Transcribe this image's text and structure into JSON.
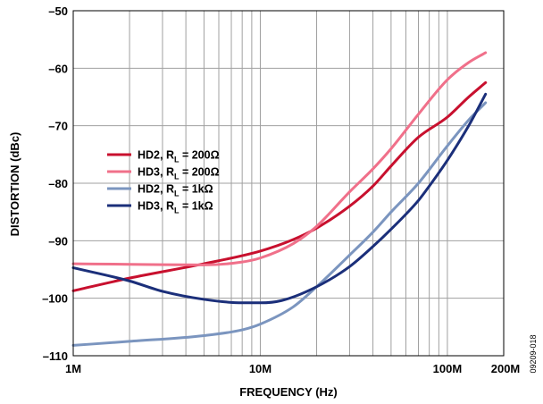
{
  "chart_data": {
    "type": "line",
    "xlabel": "FREQUENCY (Hz)",
    "ylabel": "DISTORTION (dBc)",
    "x_scale": "log",
    "xlim": [
      1000000,
      200000000
    ],
    "ylim": [
      -110,
      -50
    ],
    "grid": true,
    "legend_position": "center-left",
    "figure_id": "09209-018",
    "x_ticks": [
      {
        "value": 1000000,
        "label": "1M"
      },
      {
        "value": 10000000,
        "label": "10M"
      },
      {
        "value": 100000000,
        "label": "100M"
      },
      {
        "value": 200000000,
        "label": "200M"
      }
    ],
    "y_ticks": [
      {
        "value": -50,
        "label": "–50"
      },
      {
        "value": -60,
        "label": "–60"
      },
      {
        "value": -70,
        "label": "–70"
      },
      {
        "value": -80,
        "label": "–80"
      },
      {
        "value": -90,
        "label": "–90"
      },
      {
        "value": -100,
        "label": "–100"
      },
      {
        "value": -110,
        "label": "–110"
      }
    ],
    "series": [
      {
        "name": "HD2, RL = 200Ω",
        "label_main": "HD2, R",
        "label_sub": "L",
        "label_tail": " = 200Ω",
        "color": "#c8102e",
        "points": [
          [
            1000000,
            -98.7
          ],
          [
            2000000,
            -96.5
          ],
          [
            5000000,
            -94.0
          ],
          [
            10000000,
            -91.8
          ],
          [
            15000000,
            -89.8
          ],
          [
            20000000,
            -87.8
          ],
          [
            30000000,
            -84.0
          ],
          [
            40000000,
            -80.5
          ],
          [
            50000000,
            -77.0
          ],
          [
            70000000,
            -72.0
          ],
          [
            100000000,
            -68.5
          ],
          [
            130000000,
            -65.0
          ],
          [
            160000000,
            -62.5
          ]
        ]
      },
      {
        "name": "HD3, RL = 200Ω",
        "label_main": "HD3, R",
        "label_sub": "L",
        "label_tail": " = 200Ω",
        "color": "#f0708a",
        "points": [
          [
            1000000,
            -94.0
          ],
          [
            2000000,
            -94.1
          ],
          [
            5000000,
            -94.2
          ],
          [
            8000000,
            -93.7
          ],
          [
            10000000,
            -93.0
          ],
          [
            15000000,
            -90.5
          ],
          [
            20000000,
            -87.5
          ],
          [
            30000000,
            -81.5
          ],
          [
            40000000,
            -77.5
          ],
          [
            50000000,
            -74.0
          ],
          [
            70000000,
            -68.0
          ],
          [
            100000000,
            -62.0
          ],
          [
            130000000,
            -59.0
          ],
          [
            160000000,
            -57.3
          ]
        ]
      },
      {
        "name": "HD2, RL = 1kΩ",
        "label_main": "HD2, R",
        "label_sub": "L",
        "label_tail": " = 1kΩ",
        "color": "#7b95bf",
        "points": [
          [
            1000000,
            -108.2
          ],
          [
            2000000,
            -107.5
          ],
          [
            5000000,
            -106.5
          ],
          [
            8000000,
            -105.5
          ],
          [
            10000000,
            -104.5
          ],
          [
            15000000,
            -101.5
          ],
          [
            20000000,
            -98.0
          ],
          [
            30000000,
            -92.5
          ],
          [
            40000000,
            -88.5
          ],
          [
            50000000,
            -85.0
          ],
          [
            70000000,
            -80.0
          ],
          [
            100000000,
            -73.5
          ],
          [
            130000000,
            -69.0
          ],
          [
            160000000,
            -66.0
          ]
        ]
      },
      {
        "name": "HD3, RL = 1kΩ",
        "label_main": "HD3, R",
        "label_sub": "L",
        "label_tail": " = 1kΩ",
        "color": "#1b2f7a",
        "points": [
          [
            1000000,
            -94.7
          ],
          [
            2000000,
            -97.0
          ],
          [
            3000000,
            -98.8
          ],
          [
            5000000,
            -100.2
          ],
          [
            8000000,
            -100.8
          ],
          [
            10000000,
            -100.8
          ],
          [
            13000000,
            -100.4
          ],
          [
            20000000,
            -98.0
          ],
          [
            30000000,
            -94.5
          ],
          [
            40000000,
            -91.0
          ],
          [
            50000000,
            -88.0
          ],
          [
            70000000,
            -83.0
          ],
          [
            80000000,
            -80.5
          ],
          [
            100000000,
            -76.0
          ],
          [
            130000000,
            -70.0
          ],
          [
            160000000,
            -64.5
          ]
        ]
      }
    ]
  }
}
